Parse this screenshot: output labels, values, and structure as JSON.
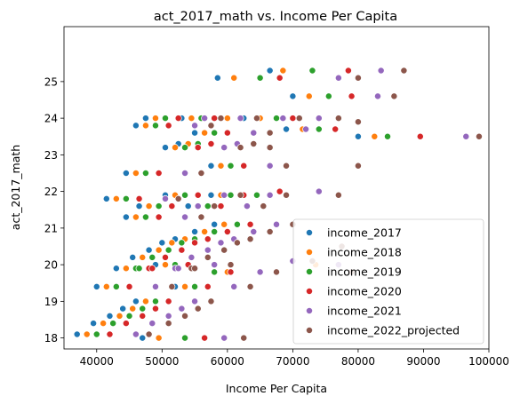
{
  "chart_data": {
    "type": "scatter",
    "title": "act_2017_math vs. Income Per Capita",
    "xlabel": "Income Per Capita",
    "ylabel": "act_2017_math",
    "xlim": [
      35000,
      100000
    ],
    "ylim": [
      17.7,
      26.5
    ],
    "xticks": [
      40000,
      50000,
      60000,
      70000,
      80000,
      90000,
      100000
    ],
    "yticks": [
      18,
      19,
      20,
      21,
      22,
      23,
      24,
      25
    ],
    "grid": false,
    "legend_position": "lower-right",
    "series": [
      {
        "name": "income_2017",
        "color": "#1f77b4",
        "points": [
          [
            37000,
            18.1
          ],
          [
            39500,
            18.4
          ],
          [
            42000,
            18.6
          ],
          [
            44000,
            18.8
          ],
          [
            46000,
            19.0
          ],
          [
            47000,
            18.0
          ],
          [
            40000,
            19.4
          ],
          [
            43000,
            19.9
          ],
          [
            45500,
            20.2
          ],
          [
            48000,
            20.4
          ],
          [
            50000,
            20.6
          ],
          [
            52000,
            20.7
          ],
          [
            55000,
            20.9
          ],
          [
            58000,
            21.1
          ],
          [
            44500,
            21.3
          ],
          [
            46500,
            21.6
          ],
          [
            50500,
            21.9
          ],
          [
            54000,
            21.6
          ],
          [
            57500,
            21.9
          ],
          [
            41500,
            21.8
          ],
          [
            44500,
            22.5
          ],
          [
            57500,
            22.7
          ],
          [
            50500,
            23.2
          ],
          [
            52500,
            23.3
          ],
          [
            55000,
            23.6
          ],
          [
            46000,
            23.8
          ],
          [
            47500,
            24.0
          ],
          [
            58000,
            24.0
          ],
          [
            62500,
            24.0
          ],
          [
            53000,
            24.0
          ],
          [
            69000,
            23.7
          ],
          [
            80000,
            23.5
          ],
          [
            58500,
            25.1
          ],
          [
            66500,
            25.3
          ],
          [
            70000,
            24.6
          ],
          [
            49000,
            20.0
          ],
          [
            52000,
            19.4
          ]
        ]
      },
      {
        "name": "income_2018",
        "color": "#ff7f0e",
        "points": [
          [
            38500,
            18.1
          ],
          [
            41000,
            18.4
          ],
          [
            43500,
            18.6
          ],
          [
            45500,
            18.8
          ],
          [
            47500,
            19.0
          ],
          [
            49500,
            18.0
          ],
          [
            41500,
            19.4
          ],
          [
            44500,
            19.9
          ],
          [
            47000,
            20.2
          ],
          [
            49500,
            20.4
          ],
          [
            51500,
            20.6
          ],
          [
            53500,
            20.7
          ],
          [
            56500,
            20.9
          ],
          [
            59500,
            21.1
          ],
          [
            46000,
            21.3
          ],
          [
            48000,
            21.6
          ],
          [
            52000,
            21.9
          ],
          [
            55500,
            21.6
          ],
          [
            59000,
            21.9
          ],
          [
            43000,
            21.8
          ],
          [
            46000,
            22.5
          ],
          [
            59000,
            22.7
          ],
          [
            52000,
            23.2
          ],
          [
            54000,
            23.3
          ],
          [
            56500,
            23.6
          ],
          [
            47500,
            23.8
          ],
          [
            49000,
            24.0
          ],
          [
            60000,
            24.0
          ],
          [
            65000,
            24.0
          ],
          [
            54500,
            24.0
          ],
          [
            71500,
            23.7
          ],
          [
            82500,
            23.5
          ],
          [
            61000,
            25.1
          ],
          [
            68500,
            25.3
          ],
          [
            72500,
            24.6
          ],
          [
            50500,
            20.0
          ],
          [
            53500,
            19.4
          ],
          [
            73500,
            20.0
          ],
          [
            60000,
            19.8
          ]
        ]
      },
      {
        "name": "income_2019",
        "color": "#2ca02c",
        "points": [
          [
            40000,
            18.1
          ],
          [
            42500,
            18.4
          ],
          [
            45000,
            18.6
          ],
          [
            47000,
            18.8
          ],
          [
            49000,
            19.0
          ],
          [
            53500,
            18.0
          ],
          [
            43000,
            19.4
          ],
          [
            46000,
            19.9
          ],
          [
            48500,
            20.2
          ],
          [
            51000,
            20.4
          ],
          [
            53000,
            20.6
          ],
          [
            55000,
            20.7
          ],
          [
            58000,
            20.9
          ],
          [
            61500,
            21.1
          ],
          [
            47500,
            21.3
          ],
          [
            49500,
            21.6
          ],
          [
            53500,
            21.9
          ],
          [
            57000,
            21.6
          ],
          [
            60500,
            21.9
          ],
          [
            44500,
            21.8
          ],
          [
            47500,
            22.5
          ],
          [
            60500,
            22.7
          ],
          [
            53500,
            23.2
          ],
          [
            55500,
            23.3
          ],
          [
            58000,
            23.6
          ],
          [
            49000,
            23.8
          ],
          [
            50500,
            24.0
          ],
          [
            62000,
            24.0
          ],
          [
            67500,
            24.0
          ],
          [
            56000,
            24.0
          ],
          [
            74000,
            23.7
          ],
          [
            84500,
            23.5
          ],
          [
            65000,
            25.1
          ],
          [
            73000,
            25.3
          ],
          [
            75500,
            24.6
          ],
          [
            52000,
            20.0
          ],
          [
            55000,
            19.4
          ],
          [
            58000,
            19.8
          ],
          [
            64500,
            21.9
          ],
          [
            46500,
            19.9
          ]
        ]
      },
      {
        "name": "income_2020",
        "color": "#d62728",
        "points": [
          [
            42000,
            18.1
          ],
          [
            44500,
            18.4
          ],
          [
            47000,
            18.6
          ],
          [
            49000,
            18.8
          ],
          [
            51000,
            19.0
          ],
          [
            56500,
            18.0
          ],
          [
            45000,
            19.4
          ],
          [
            48000,
            19.9
          ],
          [
            50500,
            20.2
          ],
          [
            53000,
            20.4
          ],
          [
            55000,
            20.6
          ],
          [
            57000,
            20.7
          ],
          [
            60000,
            20.9
          ],
          [
            63500,
            21.1
          ],
          [
            49500,
            21.3
          ],
          [
            51500,
            21.6
          ],
          [
            55500,
            21.9
          ],
          [
            59000,
            21.6
          ],
          [
            62500,
            21.9
          ],
          [
            46500,
            21.8
          ],
          [
            49500,
            22.5
          ],
          [
            62500,
            22.7
          ],
          [
            55500,
            23.2
          ],
          [
            57500,
            23.3
          ],
          [
            60000,
            23.6
          ],
          [
            51000,
            23.8
          ],
          [
            52500,
            24.0
          ],
          [
            64500,
            24.0
          ],
          [
            70000,
            24.0
          ],
          [
            58000,
            24.0
          ],
          [
            76500,
            23.7
          ],
          [
            89500,
            23.5
          ],
          [
            68000,
            25.1
          ],
          [
            78500,
            25.3
          ],
          [
            79000,
            24.6
          ],
          [
            54000,
            20.0
          ],
          [
            57000,
            19.4
          ],
          [
            60500,
            19.8
          ],
          [
            68000,
            22.0
          ],
          [
            48500,
            19.9
          ]
        ]
      },
      {
        "name": "income_2021",
        "color": "#9467bd",
        "points": [
          [
            46000,
            18.1
          ],
          [
            48500,
            18.4
          ],
          [
            51000,
            18.6
          ],
          [
            53000,
            18.8
          ],
          [
            55000,
            19.0
          ],
          [
            59500,
            18.0
          ],
          [
            49000,
            19.4
          ],
          [
            52000,
            19.9
          ],
          [
            54500,
            20.2
          ],
          [
            57000,
            20.4
          ],
          [
            59000,
            20.6
          ],
          [
            61000,
            20.7
          ],
          [
            64000,
            20.9
          ],
          [
            67500,
            21.1
          ],
          [
            53500,
            21.3
          ],
          [
            55500,
            21.6
          ],
          [
            59500,
            21.9
          ],
          [
            63000,
            21.6
          ],
          [
            66500,
            21.9
          ],
          [
            50500,
            21.8
          ],
          [
            53500,
            22.5
          ],
          [
            66500,
            22.7
          ],
          [
            59500,
            23.2
          ],
          [
            61500,
            23.3
          ],
          [
            64000,
            23.6
          ],
          [
            55000,
            23.8
          ],
          [
            56500,
            24.0
          ],
          [
            68500,
            24.0
          ],
          [
            74000,
            24.0
          ],
          [
            62000,
            24.0
          ],
          [
            72000,
            23.7
          ],
          [
            96500,
            23.5
          ],
          [
            77000,
            25.1
          ],
          [
            83500,
            25.3
          ],
          [
            83000,
            24.6
          ],
          [
            58000,
            20.0
          ],
          [
            61000,
            19.4
          ],
          [
            65000,
            19.8
          ],
          [
            74000,
            22.0
          ],
          [
            52500,
            19.9
          ],
          [
            70000,
            20.1
          ],
          [
            77000,
            20.0
          ]
        ]
      },
      {
        "name": "income_2022_projected",
        "color": "#8c564b",
        "points": [
          [
            48000,
            18.1
          ],
          [
            51000,
            18.4
          ],
          [
            53500,
            18.6
          ],
          [
            55500,
            18.8
          ],
          [
            57500,
            19.0
          ],
          [
            62500,
            18.0
          ],
          [
            51500,
            19.4
          ],
          [
            54500,
            19.9
          ],
          [
            57000,
            20.2
          ],
          [
            59500,
            20.4
          ],
          [
            61500,
            20.6
          ],
          [
            63500,
            20.7
          ],
          [
            66500,
            20.9
          ],
          [
            70000,
            21.1
          ],
          [
            56000,
            21.3
          ],
          [
            58000,
            21.6
          ],
          [
            62000,
            21.9
          ],
          [
            65500,
            21.6
          ],
          [
            69000,
            21.9
          ],
          [
            52500,
            21.8
          ],
          [
            56000,
            22.5
          ],
          [
            69000,
            22.7
          ],
          [
            62000,
            23.2
          ],
          [
            64000,
            23.3
          ],
          [
            66500,
            23.6
          ],
          [
            57500,
            23.8
          ],
          [
            59000,
            24.0
          ],
          [
            71000,
            24.0
          ],
          [
            77000,
            24.0
          ],
          [
            64500,
            24.0
          ],
          [
            80000,
            22.7
          ],
          [
            98500,
            23.5
          ],
          [
            80000,
            25.1
          ],
          [
            87000,
            25.3
          ],
          [
            85500,
            24.6
          ],
          [
            60500,
            20.0
          ],
          [
            63500,
            19.4
          ],
          [
            67500,
            19.8
          ],
          [
            77000,
            21.9
          ],
          [
            55000,
            19.9
          ],
          [
            73000,
            20.1
          ],
          [
            80000,
            23.9
          ],
          [
            77500,
            20.5
          ],
          [
            79000,
            19.8
          ],
          [
            66500,
            23.2
          ]
        ]
      }
    ]
  }
}
